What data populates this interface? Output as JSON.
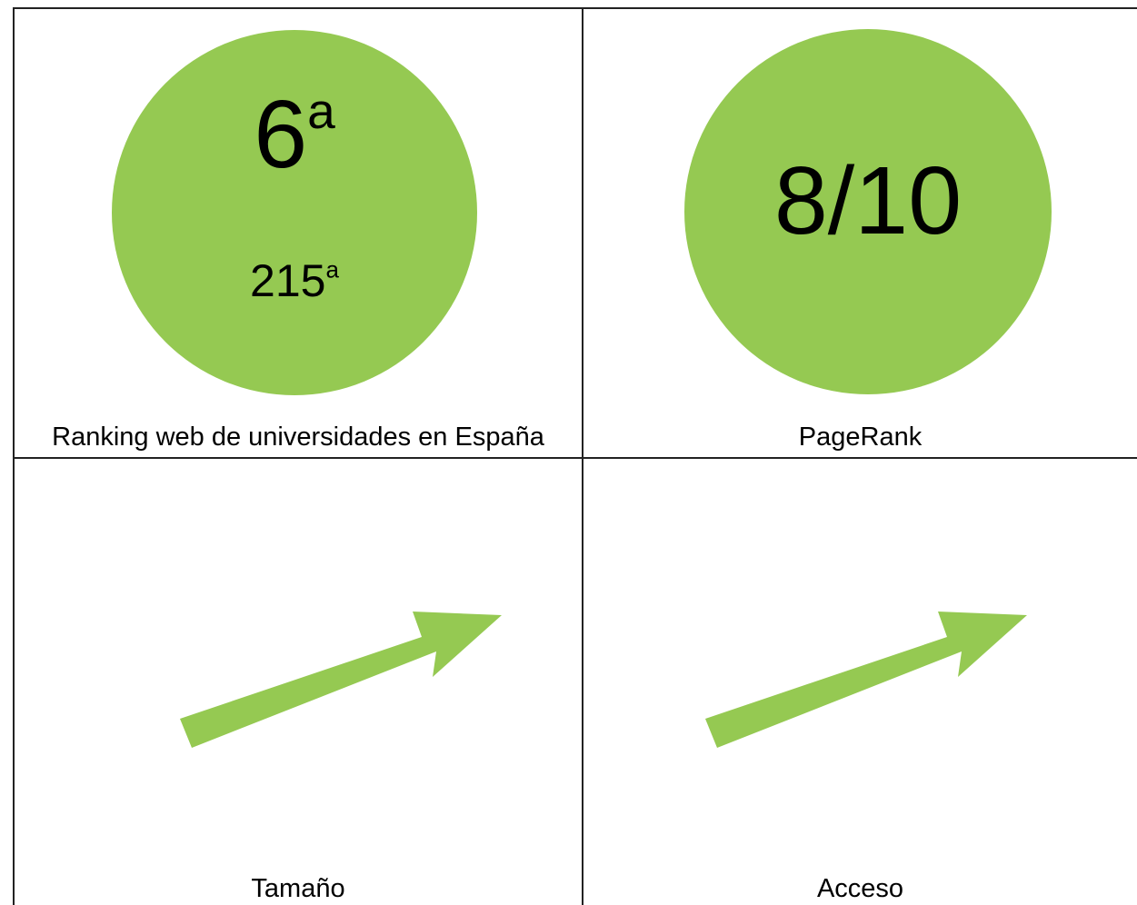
{
  "colors": {
    "accent": "#95C952",
    "line": "#222222",
    "text": "#000000"
  },
  "ranking": {
    "main_number": "6",
    "main_suffix": "a",
    "sub_number": "215",
    "sub_suffix": "a",
    "caption": "Ranking web de universidades en España"
  },
  "pagerank": {
    "value": "8/10",
    "caption": "PageRank"
  },
  "tamano": {
    "trend_icon": "arrow-up-right-icon",
    "caption": "Tamaño"
  },
  "acceso": {
    "trend_icon": "arrow-up-right-icon",
    "caption": "Acceso"
  }
}
